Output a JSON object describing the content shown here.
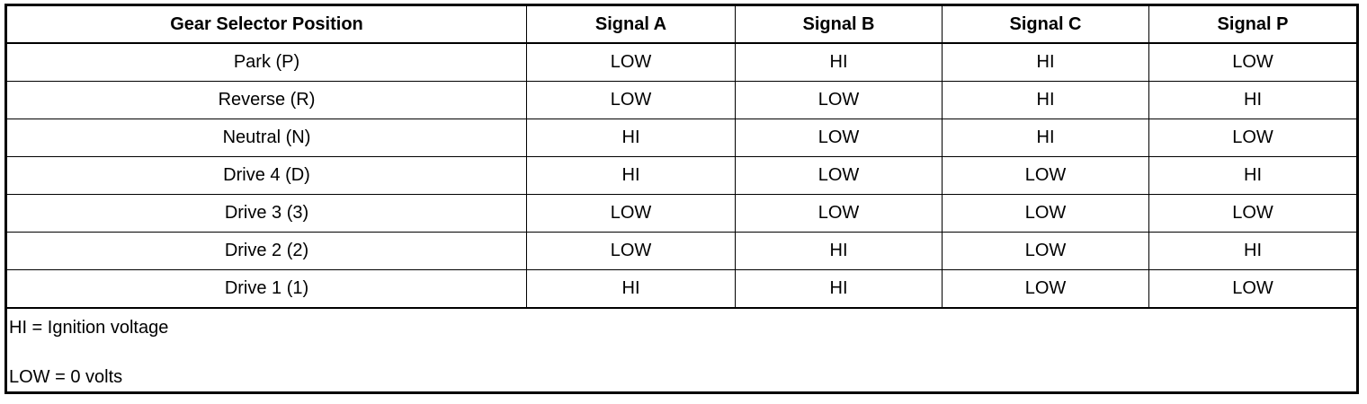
{
  "table": {
    "headers": [
      "Gear Selector Position",
      "Signal A",
      "Signal B",
      "Signal C",
      "Signal P"
    ],
    "rows": [
      [
        "Park (P)",
        "LOW",
        "HI",
        "HI",
        "LOW"
      ],
      [
        "Reverse (R)",
        "LOW",
        "LOW",
        "HI",
        "HI"
      ],
      [
        "Neutral (N)",
        "HI",
        "LOW",
        "HI",
        "LOW"
      ],
      [
        "Drive 4 (D)",
        "HI",
        "LOW",
        "LOW",
        "HI"
      ],
      [
        "Drive 3 (3)",
        "LOW",
        "LOW",
        "LOW",
        "LOW"
      ],
      [
        "Drive 2 (2)",
        "LOW",
        "HI",
        "LOW",
        "HI"
      ],
      [
        "Drive 1 (1)",
        "HI",
        "HI",
        "LOW",
        "LOW"
      ]
    ],
    "notes": [
      "HI = Ignition voltage",
      "LOW = 0 volts"
    ]
  }
}
